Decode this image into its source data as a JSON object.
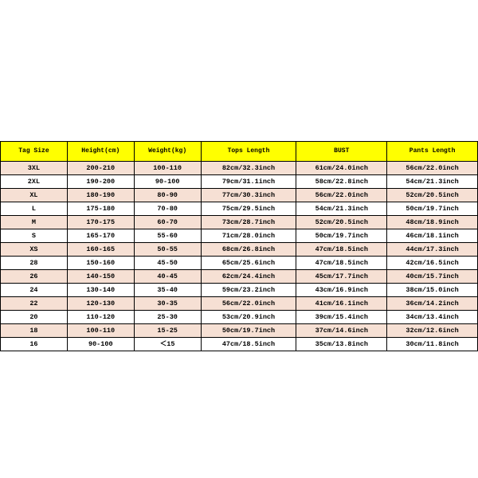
{
  "size_chart": {
    "type": "table",
    "header_bg": "#ffff00",
    "row_alt_bg": "#f6e0d4",
    "row_bg": "#ffffff",
    "border_color": "#000000",
    "font_family": "Courier New",
    "header_fontsize": 8,
    "cell_fontsize": 8.5,
    "columns": [
      "Tag Size",
      "Height(cm)",
      "Weight(kg)",
      "Tops Length",
      "BUST",
      "Pants Length"
    ],
    "rows": [
      [
        "3XL",
        "200-210",
        "100-110",
        "82cm/32.3inch",
        "61cm/24.0inch",
        "56cm/22.0inch"
      ],
      [
        "2XL",
        "190-200",
        "90-100",
        "79cm/31.1inch",
        "58cm/22.8inch",
        "54cm/21.3inch"
      ],
      [
        "XL",
        "180-190",
        "80-90",
        "77cm/30.3inch",
        "56cm/22.0inch",
        "52cm/20.5inch"
      ],
      [
        "L",
        "175-180",
        "70-80",
        "75cm/29.5inch",
        "54cm/21.3inch",
        "50cm/19.7inch"
      ],
      [
        "M",
        "170-175",
        "60-70",
        "73cm/28.7inch",
        "52cm/20.5inch",
        "48cm/18.9inch"
      ],
      [
        "S",
        "165-170",
        "55-60",
        "71cm/28.0inch",
        "50cm/19.7inch",
        "46cm/18.1inch"
      ],
      [
        "XS",
        "160-165",
        "50-55",
        "68cm/26.8inch",
        "47cm/18.5inch",
        "44cm/17.3inch"
      ],
      [
        "28",
        "150-160",
        "45-50",
        "65cm/25.6inch",
        "47cm/18.5inch",
        "42cm/16.5inch"
      ],
      [
        "26",
        "140-150",
        "40-45",
        "62cm/24.4inch",
        "45cm/17.7inch",
        "40cm/15.7inch"
      ],
      [
        "24",
        "130-140",
        "35-40",
        "59cm/23.2inch",
        "43cm/16.9inch",
        "38cm/15.0inch"
      ],
      [
        "22",
        "120-130",
        "30-35",
        "56cm/22.0inch",
        "41cm/16.1inch",
        "36cm/14.2inch"
      ],
      [
        "20",
        "110-120",
        "25-30",
        "53cm/20.9inch",
        "39cm/15.4inch",
        "34cm/13.4inch"
      ],
      [
        "18",
        "100-110",
        "15-25",
        "50cm/19.7inch",
        "37cm/14.6inch",
        "32cm/12.6inch"
      ],
      [
        "16",
        "90-100",
        "＜15",
        "47cm/18.5inch",
        "35cm/13.8inch",
        "30cm/11.8inch"
      ]
    ]
  }
}
